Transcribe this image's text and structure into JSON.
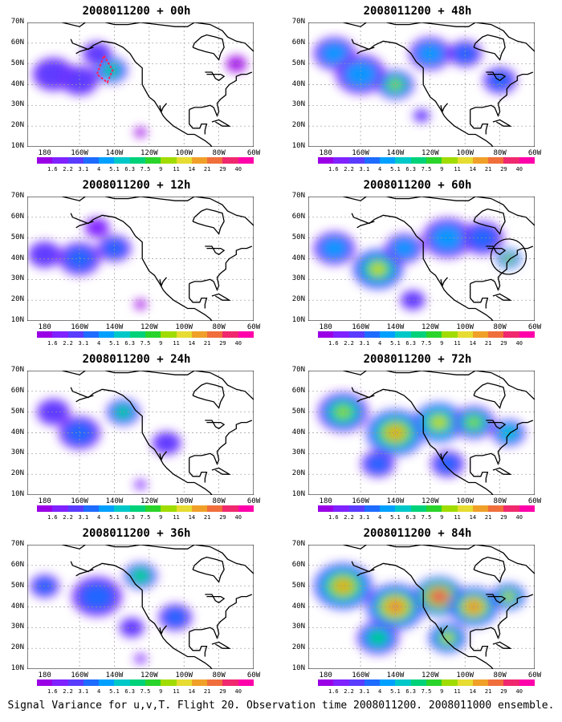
{
  "panels": [
    {
      "title": "2008011200 + 00h",
      "intensity": 0.2
    },
    {
      "title": "2008011200 + 48h",
      "intensity": 0.55
    },
    {
      "title": "2008011200 + 12h",
      "intensity": 0.3
    },
    {
      "title": "2008011200 + 60h",
      "intensity": 0.65
    },
    {
      "title": "2008011200 + 24h",
      "intensity": 0.4
    },
    {
      "title": "2008011200 + 72h",
      "intensity": 0.75
    },
    {
      "title": "2008011200 + 36h",
      "intensity": 0.5
    },
    {
      "title": "2008011200 + 84h",
      "intensity": 0.9
    }
  ],
  "axes": {
    "y_labels": [
      "70N",
      "60N",
      "50N",
      "40N",
      "30N",
      "20N",
      "10N"
    ],
    "x_labels": [
      "180",
      "160W",
      "140W",
      "120W",
      "100W",
      "80W",
      "60W"
    ]
  },
  "colorbar": {
    "labels": [
      "1.6",
      "2.2",
      "3.1",
      "4",
      "5.1",
      "6.3",
      "7.5",
      "9",
      "11",
      "14",
      "21",
      "29",
      "40"
    ],
    "colors": [
      "#9a00e6",
      "#7f22ff",
      "#5a3cff",
      "#1e6bff",
      "#00a0ff",
      "#00c8c8",
      "#00d27a",
      "#2bd42b",
      "#a0dc00",
      "#e6dc32",
      "#f0a028",
      "#f06e3c",
      "#f0286e",
      "#ff00aa"
    ]
  },
  "caption": "Signal Variance for u,v,T. Flight 20. Observation time 2008011200. 2008011000 ensemble.",
  "colors": {
    "coast": "#000000",
    "grid": "#9a9a9a",
    "background": "#ffffff"
  }
}
